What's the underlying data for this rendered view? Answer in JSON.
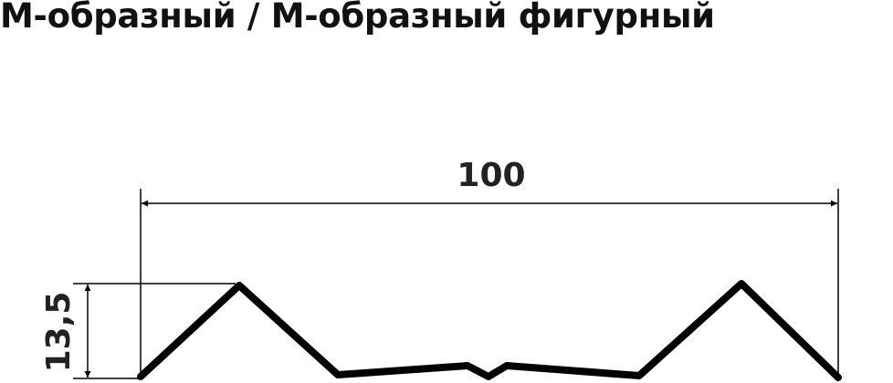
{
  "title": "М-образный / М-образный фигурный",
  "dimensions": {
    "width_label": "100",
    "height_label": "13,5"
  },
  "colors": {
    "profile": "#000000",
    "text": "#222222"
  }
}
